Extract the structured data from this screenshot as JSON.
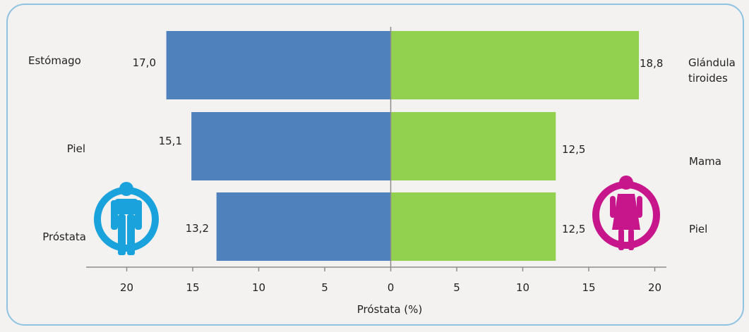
{
  "colors": {
    "male_bar": "#4f81bd",
    "female_bar": "#92d050",
    "male_icon": "#1aa2dd",
    "female_icon": "#c7168c",
    "axis": "#8c8c8c"
  },
  "icons": {
    "male": "male-person-icon",
    "female": "female-person-icon"
  },
  "chart_data": {
    "type": "bar",
    "orientation": "horizontal-diverging",
    "xlabel": "Próstata (%)",
    "xlim": [
      -21,
      21
    ],
    "xticks": [
      -20,
      -15,
      -10,
      -5,
      0,
      5,
      10,
      15,
      20
    ],
    "xtick_labels": [
      "20",
      "15",
      "10",
      "5",
      "0",
      "5",
      "10",
      "15",
      "20"
    ],
    "series": [
      {
        "side": "left",
        "categories": [
          "Estómago",
          "Piel",
          "Próstata"
        ],
        "values": [
          17.0,
          15.1,
          13.2
        ],
        "value_labels": [
          "17,0",
          "15,1",
          "13,2"
        ]
      },
      {
        "side": "right",
        "categories": [
          "Glándula tiroides",
          "Mama",
          "Piel"
        ],
        "category_lines": [
          [
            "Glándula",
            "tiroides"
          ],
          [
            "Mama"
          ],
          [
            "Piel"
          ]
        ],
        "values": [
          18.8,
          12.5,
          12.5
        ],
        "value_labels": [
          "18,8",
          "12,5",
          "12,5"
        ]
      }
    ]
  }
}
